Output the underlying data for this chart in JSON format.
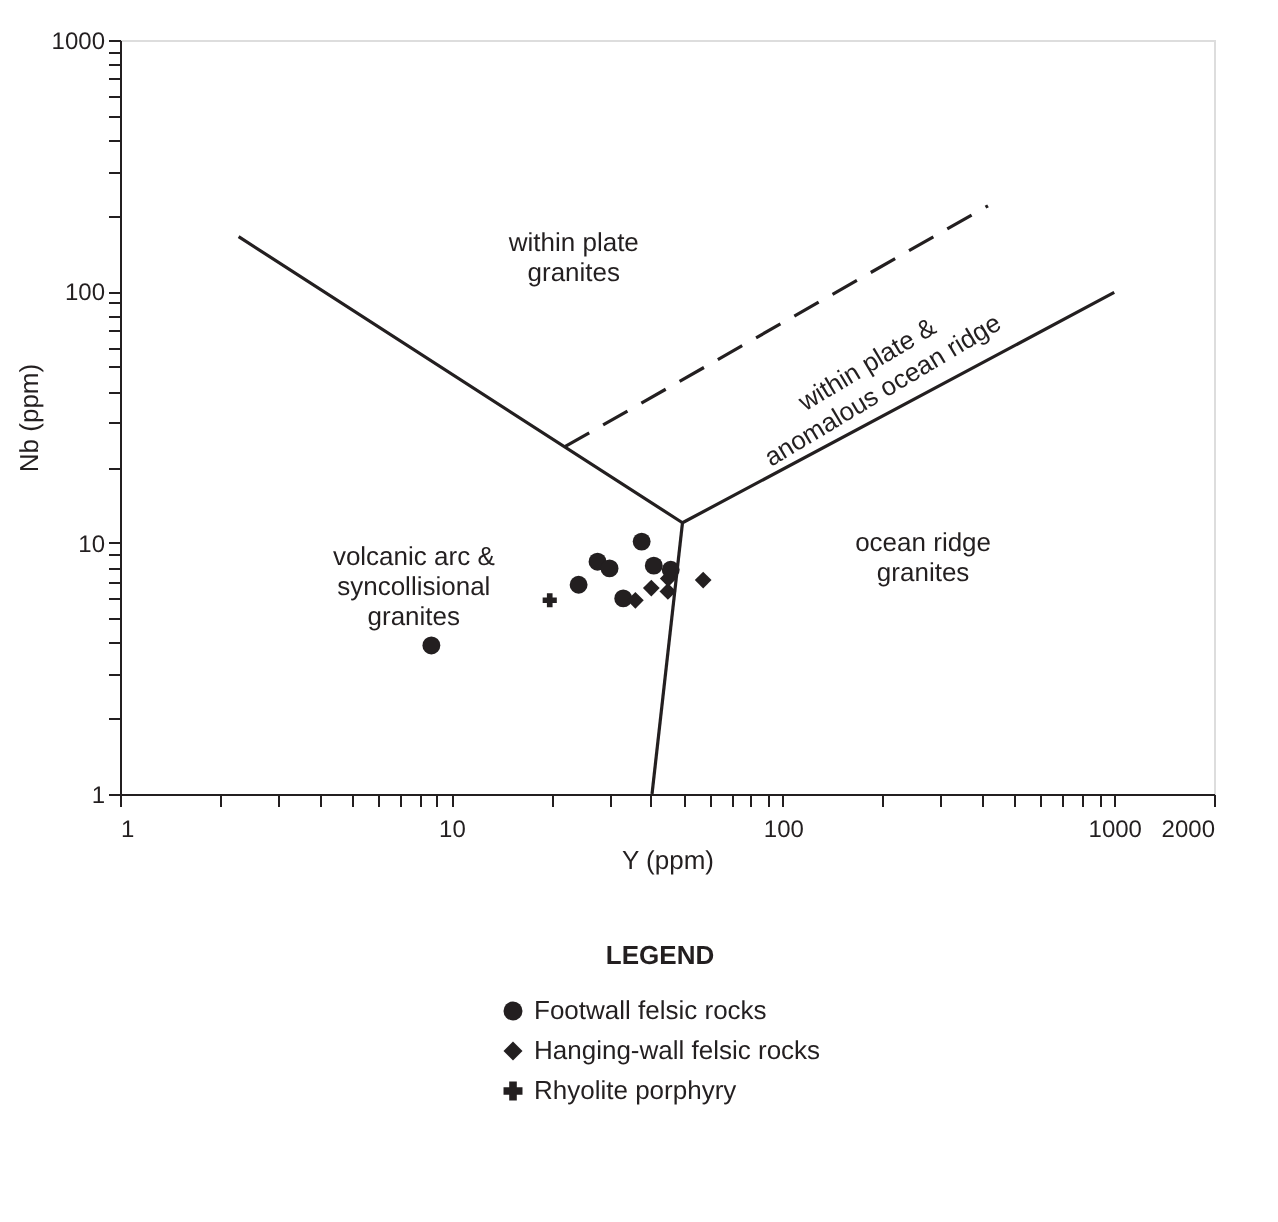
{
  "chart_data": {
    "type": "scatter",
    "xlabel": "Y (ppm)",
    "ylabel": "Nb (ppm)",
    "legend_title": "LEGEND",
    "log": "xy",
    "grid": false,
    "legend": "bottom",
    "xlim": [
      1,
      2000
    ],
    "ylim": [
      1,
      1000
    ],
    "xticks": [
      1,
      {
        "value": 2,
        "label": null
      },
      {
        "value": 3,
        "label": null
      },
      {
        "value": 4,
        "label": null
      },
      {
        "value": 5,
        "label": null
      },
      {
        "value": 6,
        "label": null
      },
      {
        "value": 7,
        "label": null
      },
      {
        "value": 8,
        "label": null
      },
      {
        "value": 9,
        "label": null
      },
      10,
      {
        "value": 20,
        "label": null
      },
      {
        "value": 30,
        "label": null
      },
      {
        "value": 40,
        "label": null
      },
      {
        "value": 50,
        "label": null
      },
      {
        "value": 60,
        "label": null
      },
      {
        "value": 70,
        "label": null
      },
      {
        "value": 80,
        "label": null
      },
      {
        "value": 90,
        "label": null
      },
      100,
      {
        "value": 200,
        "label": null
      },
      {
        "value": 300,
        "label": null
      },
      {
        "value": 400,
        "label": null
      },
      {
        "value": 500,
        "label": null
      },
      {
        "value": 600,
        "label": null
      },
      {
        "value": 700,
        "label": null
      },
      {
        "value": 800,
        "label": null
      },
      {
        "value": 900,
        "label": null
      },
      1000,
      2000
    ],
    "yticks": [
      1,
      {
        "value": 2,
        "label": null
      },
      {
        "value": 3,
        "label": null
      },
      {
        "value": 4,
        "label": null
      },
      {
        "value": 5,
        "label": null
      },
      {
        "value": 6,
        "label": null
      },
      {
        "value": 7,
        "label": null
      },
      {
        "value": 8,
        "label": null
      },
      {
        "value": 9,
        "label": null
      },
      10,
      {
        "value": 20,
        "label": null
      },
      {
        "value": 30,
        "label": null
      },
      {
        "value": 40,
        "label": null
      },
      {
        "value": 50,
        "label": null
      },
      {
        "value": 60,
        "label": null
      },
      {
        "value": 70,
        "label": null
      },
      {
        "value": 80,
        "label": null
      },
      {
        "value": 90,
        "label": null
      },
      100,
      {
        "value": 200,
        "label": null
      },
      {
        "value": 300,
        "label": null
      },
      {
        "value": 400,
        "label": null
      },
      {
        "value": 500,
        "label": null
      },
      {
        "value": 600,
        "label": null
      },
      {
        "value": 700,
        "label": null
      },
      {
        "value": 800,
        "label": null
      },
      {
        "value": 900,
        "label": null
      },
      1000
    ],
    "series": [
      {
        "name": "Footwall felsic rocks",
        "color": "#231f20",
        "marker": "circle",
        "x": [
          8.7,
          24.2,
          27.6,
          30,
          37.5,
          33,
          40.8,
          45.9
        ],
        "values": [
          3.9,
          6.8,
          8.4,
          7.9,
          10.1,
          6.0,
          8.1,
          7.8
        ]
      },
      {
        "name": "Hanging-wall felsic rocks",
        "color": "#231f20",
        "marker": "diamond",
        "x": [
          35.9,
          40.1,
          45,
          45.1,
          57.5
        ],
        "values": [
          5.9,
          6.6,
          6.4,
          7.2,
          7.1
        ]
      },
      {
        "name": "Rhyolite porphyry",
        "color": "#231f20",
        "marker": "cross",
        "x": [
          19.8
        ],
        "values": [
          5.9
        ]
      },
      {
        "type": "line",
        "color": "#231f20",
        "line_style": "solid",
        "x": [
          2.28,
          49.8,
          1000
        ],
        "values": [
          165,
          12,
          99
        ]
      },
      {
        "type": "line",
        "color": "#231f20",
        "line_style": "solid",
        "x": [
          49.8,
          40.3
        ],
        "values": [
          12,
          1
        ]
      },
      {
        "type": "line",
        "color": "#231f20",
        "line_style": "dashed",
        "x": [
          22,
          416
        ],
        "values": [
          24.1,
          219
        ]
      }
    ],
    "annotations": [
      "within plate\ngranites",
      "within plate &\nanomalous ocean ridge",
      "volcanic arc &\nsyncollisional\ngranites",
      "ocean ridge\ngranites"
    ]
  }
}
